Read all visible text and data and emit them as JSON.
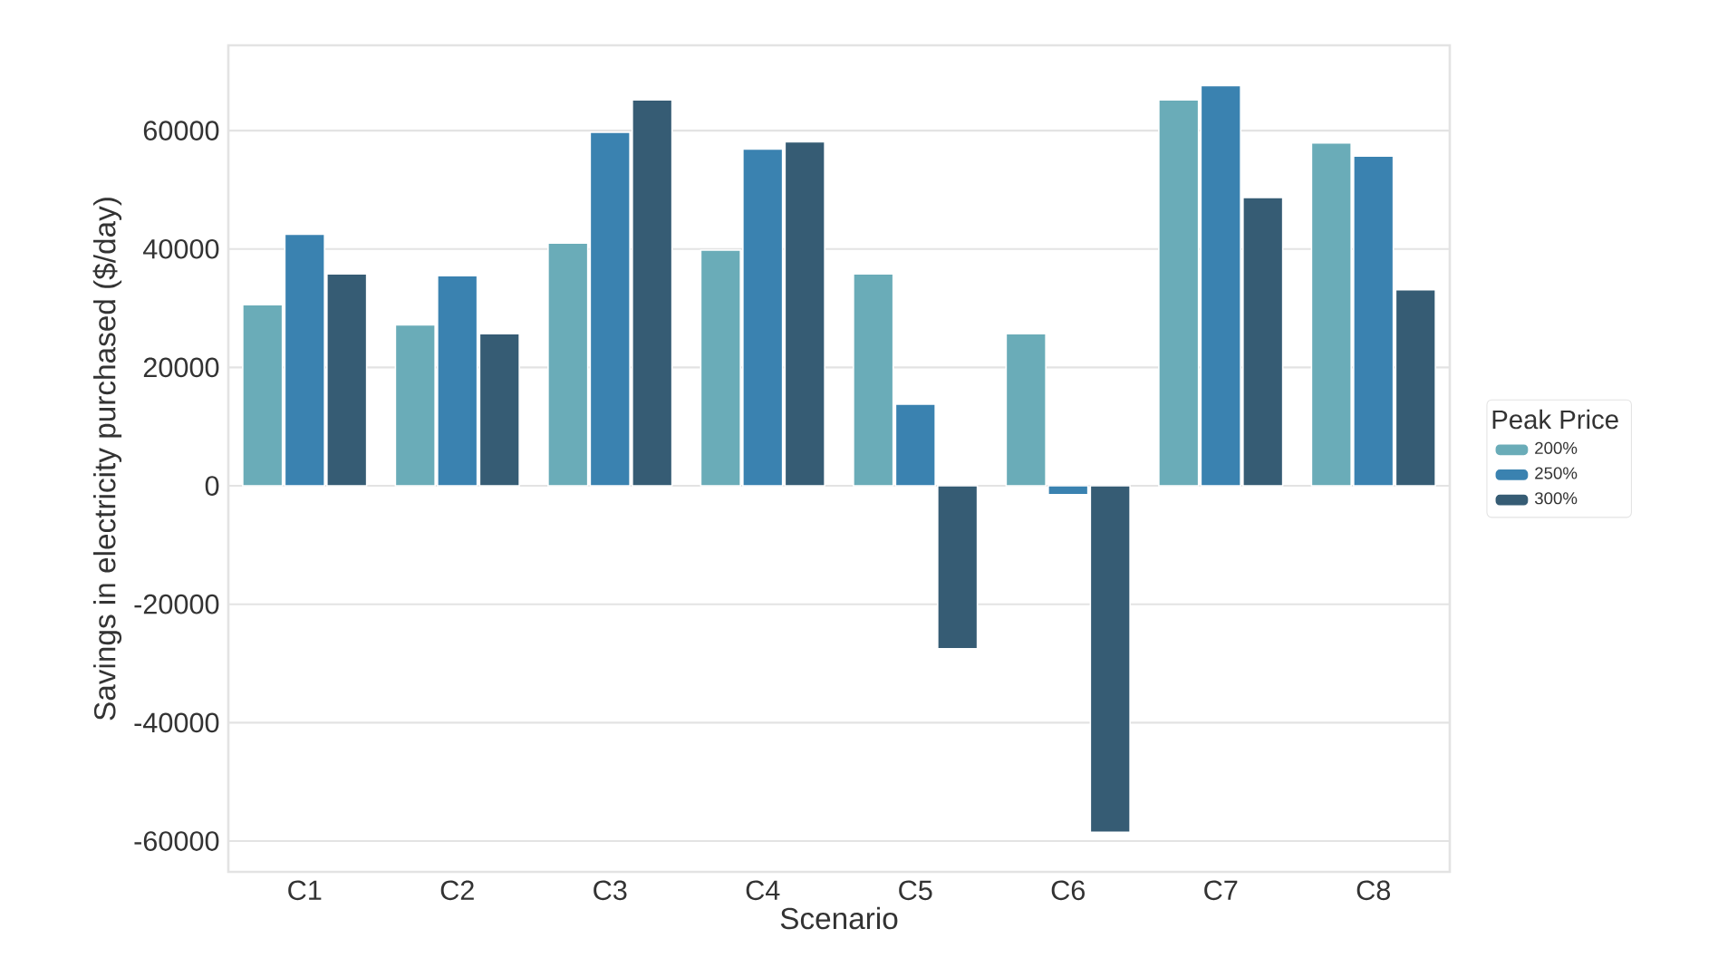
{
  "chart_data": {
    "type": "bar",
    "xlabel": "Scenario",
    "ylabel": "Savings in electricity purchased ($/day)",
    "legend_title": "Peak Price",
    "categories": [
      "C1",
      "C2",
      "C3",
      "C4",
      "C5",
      "C6",
      "C7",
      "C8"
    ],
    "series": [
      {
        "name": "200%",
        "color": "#6aacb8",
        "values": [
          30600,
          27200,
          41000,
          39800,
          35800,
          25700,
          65200,
          57900
        ]
      },
      {
        "name": "250%",
        "color": "#3a82b0",
        "values": [
          42500,
          35500,
          59700,
          56900,
          13800,
          -1500,
          67600,
          55700
        ]
      },
      {
        "name": "300%",
        "color": "#365c74",
        "values": [
          35800,
          25700,
          65200,
          58100,
          -27500,
          -58500,
          48700,
          33100
        ]
      }
    ],
    "ylim": [
      -65200,
      74400
    ],
    "yticks": [
      -60000,
      -40000,
      -20000,
      0,
      20000,
      40000,
      60000
    ],
    "grid": "y",
    "legend": "right"
  }
}
